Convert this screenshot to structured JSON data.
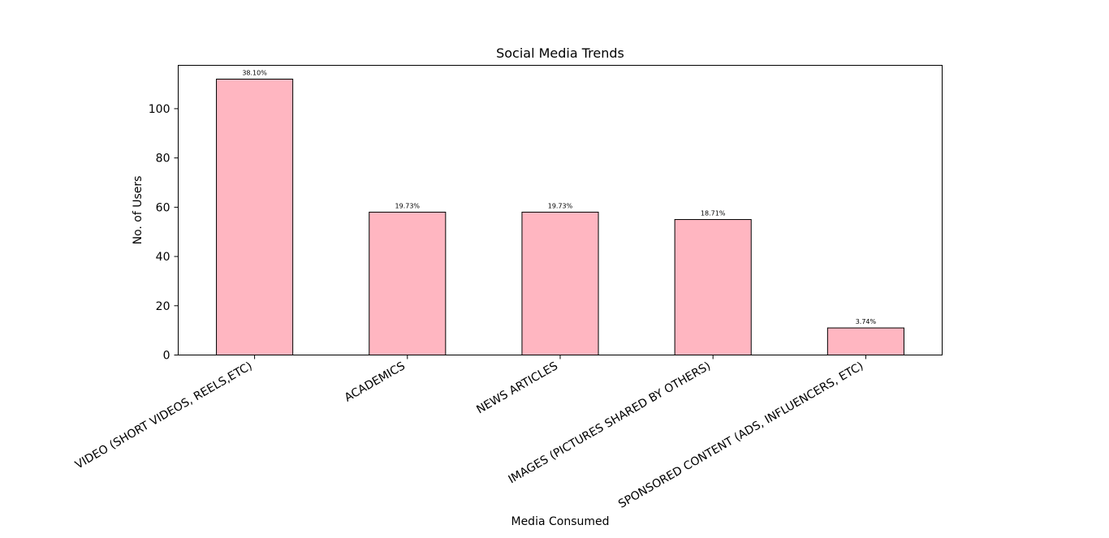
{
  "chart_data": {
    "type": "bar",
    "title": "Social Media Trends",
    "xlabel": "Media Consumed",
    "ylabel": "No. of Users",
    "categories": [
      "VIDEO (SHORT VIDEOS, REELS,ETC)",
      "ACADEMICS",
      "NEWS ARTICLES",
      "IMAGES (PICTURES SHARED BY OTHERS)",
      "SPONSORED CONTENT (ADS, INFLUENCERS, ETC)"
    ],
    "values": [
      112,
      58,
      58,
      55,
      11
    ],
    "data_labels": [
      "38.10%",
      "19.73%",
      "19.73%",
      "18.71%",
      "3.74%"
    ],
    "ylim": [
      0,
      117.6
    ],
    "yticks": [
      0,
      20,
      40,
      60,
      80,
      100
    ],
    "grid": false,
    "bar_color": "#ffb6c1",
    "edge_color": "#000000"
  }
}
